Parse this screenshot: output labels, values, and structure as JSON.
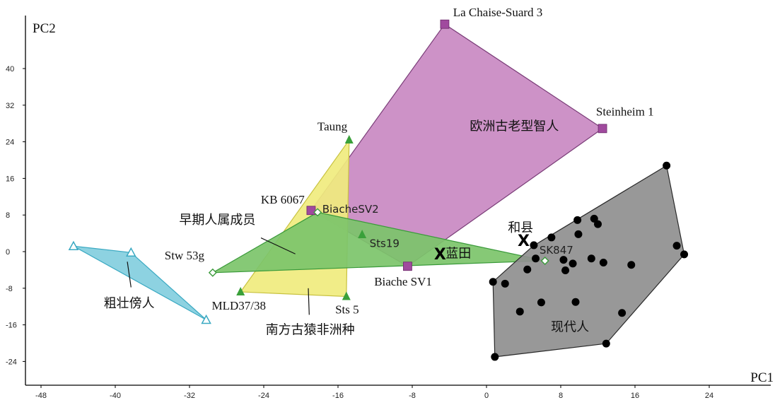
{
  "chart_data": {
    "type": "scatter",
    "xlabel": "PC1",
    "ylabel": "PC2",
    "xlim": [
      -50,
      30
    ],
    "ylim": [
      -29,
      50
    ],
    "xticks": [
      -48,
      -40,
      -32,
      -24,
      -16,
      -8,
      0,
      8,
      16,
      24
    ],
    "yticks": [
      40,
      32,
      24,
      16,
      8,
      0,
      -8,
      -16,
      -24
    ],
    "hulls": [
      {
        "name": "欧洲古老型智人",
        "fill": "#c989c2",
        "stroke": "#7a3d78",
        "marker": "square",
        "marker_color": "#a04a9e",
        "points": [
          [
            -18.9,
            9.0
          ],
          [
            -8.5,
            -3.2
          ],
          [
            12.5,
            26.9
          ],
          [
            -4.5,
            49.7
          ]
        ],
        "label": {
          "text": "欧洲古老型智人",
          "at": [
            3,
            26.5
          ]
        }
      },
      {
        "name": "南方古猿非洲种",
        "fill": "#f0ec7e",
        "stroke": "#c8c240",
        "marker": "triangle",
        "marker_color": "#3aa03a",
        "points": [
          [
            -14.8,
            24.4
          ],
          [
            -15.1,
            -9.8
          ],
          [
            -26.5,
            -8.8
          ]
        ],
        "label": {
          "text": "南方古猿非洲种",
          "at": [
            -19,
            -18
          ]
        }
      },
      {
        "name": "早期人属成员",
        "fill": "#7cc46a",
        "stroke": "#3a9a3a",
        "marker": "diamond-open",
        "marker_color": "#3a9a3a",
        "points": [
          [
            -29.5,
            -4.6
          ],
          [
            -18.2,
            8.6
          ],
          [
            6.3,
            -2.0
          ]
        ],
        "label": {
          "text": "早期人属成员",
          "at": [
            -29,
            6
          ]
        }
      },
      {
        "name": "粗壮傍人",
        "fill": "#83cede",
        "stroke": "#3aa9c2",
        "marker": "triangle-open",
        "marker_color": "#3aa9c2",
        "points": [
          [
            -44.5,
            1.2
          ],
          [
            -30.2,
            -14.9
          ],
          [
            -38.3,
            -0.2
          ]
        ],
        "label": {
          "text": "粗壮傍人",
          "at": [
            -38.5,
            -12.2
          ]
        }
      },
      {
        "name": "现代人",
        "fill": "#8f8f8f",
        "stroke": "#2a2a2a",
        "marker": "circle",
        "marker_color": "#000000",
        "points": [
          [
            19.4,
            18.8
          ],
          [
            21.3,
            -0.6
          ],
          [
            12.9,
            -20.1
          ],
          [
            0.9,
            -23.0
          ],
          [
            0.7,
            -6.6
          ],
          [
            5.0,
            1.2
          ]
        ],
        "label": {
          "text": "现代人",
          "at": [
            9,
            -17.4
          ]
        }
      }
    ],
    "series": [
      {
        "name": "欧洲古老型智人",
        "marker": "square",
        "color": "#a04a9e",
        "points": [
          [
            -4.5,
            49.7
          ],
          [
            12.5,
            26.9
          ],
          [
            -18.9,
            9.0
          ],
          [
            -8.5,
            -3.2
          ]
        ]
      },
      {
        "name": "南方古猿非洲种",
        "marker": "triangle",
        "color": "#3aa03a",
        "points": [
          [
            -14.8,
            24.4
          ],
          [
            -13.4,
            3.7
          ],
          [
            -26.5,
            -8.8
          ],
          [
            -15.1,
            -9.8
          ]
        ]
      },
      {
        "name": "早期人属成员",
        "marker": "diamond-open",
        "color": "#3a9a3a",
        "points": [
          [
            -29.5,
            -4.6
          ],
          [
            -18.2,
            8.6
          ],
          [
            6.3,
            -2.0
          ]
        ]
      },
      {
        "name": "粗壮傍人",
        "marker": "triangle-open",
        "color": "#3aa9c2",
        "points": [
          [
            -44.5,
            1.2
          ],
          [
            -38.3,
            -0.2
          ],
          [
            -30.2,
            -14.9
          ]
        ]
      },
      {
        "name": "现代人",
        "marker": "circle",
        "color": "#000000",
        "points": [
          [
            19.4,
            18.8
          ],
          [
            9.8,
            6.9
          ],
          [
            11.6,
            7.2
          ],
          [
            12.0,
            6.0
          ],
          [
            7.0,
            3.1
          ],
          [
            9.9,
            3.8
          ],
          [
            5.1,
            1.4
          ],
          [
            20.5,
            1.3
          ],
          [
            21.3,
            -0.6
          ],
          [
            5.3,
            -1.5
          ],
          [
            8.3,
            -1.8
          ],
          [
            9.3,
            -2.6
          ],
          [
            11.3,
            -1.5
          ],
          [
            12.6,
            -2.4
          ],
          [
            15.6,
            -2.9
          ],
          [
            4.4,
            -3.9
          ],
          [
            8.5,
            -4.1
          ],
          [
            0.7,
            -6.6
          ],
          [
            2.0,
            -7.0
          ],
          [
            5.9,
            -11.1
          ],
          [
            9.6,
            -11.0
          ],
          [
            3.6,
            -13.1
          ],
          [
            14.6,
            -13.4
          ],
          [
            12.9,
            -20.1
          ],
          [
            0.9,
            -23.0
          ]
        ]
      },
      {
        "name": "X",
        "marker": "x",
        "color": "#000000",
        "points": [
          [
            4.0,
            2.5
          ],
          [
            -5.0,
            -0.5
          ]
        ]
      }
    ],
    "annotations": [
      {
        "text": "La Chaise-Suard 3",
        "at": [
          -3.6,
          51.4
        ],
        "anchor": "start",
        "style": "lbl"
      },
      {
        "text": "Steinheim 1",
        "at": [
          11.8,
          29.7
        ],
        "anchor": "start",
        "style": "lbl"
      },
      {
        "text": "Taung",
        "at": [
          -15.0,
          26.5
        ],
        "anchor": "end",
        "style": "lbl"
      },
      {
        "text": "KB 6067",
        "at": [
          -19.6,
          10.5
        ],
        "anchor": "end",
        "style": "lbl"
      },
      {
        "text": "BiacheSV2",
        "at": [
          -17.7,
          8.5
        ],
        "anchor": "start",
        "style": "lbl-mono"
      },
      {
        "text": "Sts19",
        "at": [
          -12.6,
          1.0
        ],
        "anchor": "start",
        "style": "lbl-mono"
      },
      {
        "text": "Biache SV1",
        "at": [
          -12.1,
          -7.4
        ],
        "anchor": "start",
        "style": "lbl"
      },
      {
        "text": "Stw 53g",
        "at": [
          -30.4,
          -1.7
        ],
        "anchor": "end",
        "style": "lbl"
      },
      {
        "text": "MLD37/38",
        "at": [
          -29.6,
          -12.7
        ],
        "anchor": "start",
        "style": "lbl"
      },
      {
        "text": "Sts 5",
        "at": [
          -16.3,
          -13.5
        ],
        "anchor": "start",
        "style": "lbl"
      },
      {
        "text": "和县",
        "at": [
          2.3,
          4.3
        ],
        "anchor": "start",
        "style": "lbl-cjk"
      },
      {
        "text": "SK847",
        "at": [
          5.7,
          -0.5
        ],
        "anchor": "start",
        "style": "lbl-mono"
      },
      {
        "text": "蓝田",
        "at": [
          -4.4,
          -1.3
        ],
        "anchor": "start",
        "style": "lbl-cjk"
      }
    ],
    "leader_lines": [
      {
        "label": "早期人属成员",
        "from": [
          -24.3,
          3.0
        ],
        "to": [
          -20.6,
          -0.5
        ]
      },
      {
        "label": "粗壮傍人",
        "from": [
          -38.3,
          -7.8
        ],
        "to": [
          -38.7,
          -2.2
        ]
      },
      {
        "label": "南方古猿非洲种",
        "from": [
          -19.1,
          -13.8
        ],
        "to": [
          -19.2,
          -8.0
        ]
      }
    ]
  }
}
